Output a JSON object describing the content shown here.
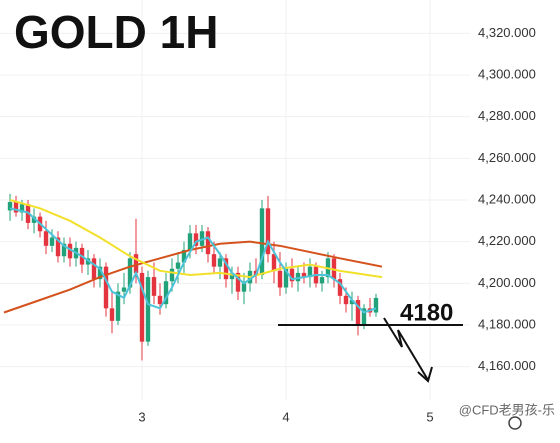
{
  "chart_data": {
    "type": "candlestick",
    "title": "GOLD 1H",
    "annotation": "4180",
    "level": 4180,
    "watermark": "@CFD老男孩-乐",
    "xlim": [
      -1.67,
      76.67
    ],
    "ylim": [
      4144,
      4336
    ],
    "xticks": [
      {
        "value": 22,
        "label": "3"
      },
      {
        "value": 46,
        "label": "4"
      },
      {
        "value": 70,
        "label": "5"
      }
    ],
    "yticks": [
      {
        "value": 4160,
        "label": "4,160.000"
      },
      {
        "value": 4180,
        "label": "4,180.000"
      },
      {
        "value": 4200,
        "label": "4,200.000"
      },
      {
        "value": 4220,
        "label": "4,220.000"
      },
      {
        "value": 4240,
        "label": "4,240.000"
      },
      {
        "value": 4260,
        "label": "4,260.000"
      },
      {
        "value": 4280,
        "label": "4,280.000"
      },
      {
        "value": 4300,
        "label": "4,300.000"
      },
      {
        "value": 4320,
        "label": "4,320.000"
      }
    ],
    "grid": true,
    "up_color": "#22a27a",
    "down_color": "#e3343f",
    "ohlc": [
      [
        4235,
        4243,
        4230,
        4239
      ],
      [
        4239,
        4242,
        4232,
        4234
      ],
      [
        4234,
        4240,
        4230,
        4238
      ],
      [
        4238,
        4240,
        4226,
        4229
      ],
      [
        4229,
        4236,
        4224,
        4232
      ],
      [
        4232,
        4234,
        4222,
        4225
      ],
      [
        4225,
        4230,
        4214,
        4218
      ],
      [
        4218,
        4226,
        4215,
        4222
      ],
      [
        4222,
        4225,
        4210,
        4213
      ],
      [
        4213,
        4222,
        4210,
        4219
      ],
      [
        4219,
        4222,
        4208,
        4212
      ],
      [
        4212,
        4220,
        4208,
        4217
      ],
      [
        4217,
        4219,
        4205,
        4209
      ],
      [
        4209,
        4216,
        4204,
        4212
      ],
      [
        4212,
        4214,
        4198,
        4202
      ],
      [
        4202,
        4212,
        4198,
        4208
      ],
      [
        4208,
        4210,
        4184,
        4188
      ],
      [
        4188,
        4196,
        4176,
        4182
      ],
      [
        4182,
        4200,
        4180,
        4196
      ],
      [
        4196,
        4205,
        4190,
        4198
      ],
      [
        4198,
        4215,
        4195,
        4212
      ],
      [
        4214,
        4231,
        4200,
        4205
      ],
      [
        4205,
        4208,
        4163,
        4172
      ],
      [
        4172,
        4206,
        4170,
        4203
      ],
      [
        4203,
        4210,
        4190,
        4194
      ],
      [
        4194,
        4200,
        4185,
        4190
      ],
      [
        4190,
        4205,
        4188,
        4201
      ],
      [
        4201,
        4212,
        4196,
        4207
      ],
      [
        4207,
        4215,
        4200,
        4210
      ],
      [
        4210,
        4220,
        4205,
        4216
      ],
      [
        4216,
        4228,
        4212,
        4224
      ],
      [
        4224,
        4228,
        4214,
        4218
      ],
      [
        4218,
        4228,
        4215,
        4225
      ],
      [
        4225,
        4227,
        4210,
        4214
      ],
      [
        4214,
        4220,
        4205,
        4208
      ],
      [
        4208,
        4215,
        4202,
        4212
      ],
      [
        4212,
        4214,
        4198,
        4202
      ],
      [
        4202,
        4208,
        4195,
        4205
      ],
      [
        4205,
        4208,
        4192,
        4196
      ],
      [
        4196,
        4205,
        4190,
        4200
      ],
      [
        4200,
        4210,
        4196,
        4206
      ],
      [
        4206,
        4212,
        4200,
        4204
      ],
      [
        4204,
        4240,
        4202,
        4236
      ],
      [
        4236,
        4242,
        4210,
        4214
      ],
      [
        4214,
        4220,
        4200,
        4206
      ],
      [
        4206,
        4215,
        4194,
        4198
      ],
      [
        4198,
        4210,
        4195,
        4207
      ],
      [
        4207,
        4212,
        4198,
        4201
      ],
      [
        4201,
        4208,
        4196,
        4205
      ],
      [
        4205,
        4210,
        4200,
        4203
      ],
      [
        4203,
        4212,
        4198,
        4208
      ],
      [
        4208,
        4210,
        4198,
        4200
      ],
      [
        4200,
        4206,
        4196,
        4203
      ],
      [
        4203,
        4215,
        4200,
        4212
      ],
      [
        4212,
        4214,
        4198,
        4202
      ],
      [
        4202,
        4205,
        4190,
        4194
      ],
      [
        4194,
        4198,
        4186,
        4190
      ],
      [
        4190,
        4196,
        4182,
        4192
      ],
      [
        4192,
        4194,
        4175,
        4180
      ],
      [
        4180,
        4190,
        4178,
        4188
      ],
      [
        4188,
        4193,
        4184,
        4186
      ],
      [
        4186,
        4195,
        4184,
        4193
      ]
    ],
    "series": [
      {
        "color": "#d4521c",
        "x": [
          -1,
          5,
          10,
          15,
          20,
          25,
          30,
          35,
          40,
          45,
          50,
          55,
          62
        ],
        "values": [
          4186,
          4192,
          4197,
          4203,
          4208,
          4212,
          4216,
          4219,
          4220,
          4218,
          4215,
          4212,
          4208
        ]
      },
      {
        "color": "#f2e02a",
        "x": [
          0,
          5,
          10,
          15,
          20,
          25,
          30,
          35,
          40,
          45,
          50,
          55,
          62
        ],
        "values": [
          4240,
          4236,
          4230,
          4222,
          4213,
          4206,
          4204,
          4205,
          4203,
          4207,
          4209,
          4206,
          4203
        ]
      },
      {
        "color": "#4cc3d9",
        "x": [
          0,
          3,
          6,
          9,
          12,
          15,
          17,
          19,
          21,
          23,
          25,
          27,
          29,
          31,
          33,
          35,
          37,
          39,
          41,
          43,
          45,
          47,
          49,
          51,
          53,
          55,
          57,
          59,
          61
        ],
        "values": [
          4236,
          4234,
          4226,
          4218,
          4213,
          4207,
          4196,
          4193,
          4205,
          4190,
          4188,
          4198,
          4210,
          4220,
          4222,
          4214,
          4205,
          4200,
          4204,
          4220,
          4210,
          4202,
          4203,
          4204,
          4204,
          4200,
          4192,
          4186,
          4188
        ]
      }
    ]
  }
}
